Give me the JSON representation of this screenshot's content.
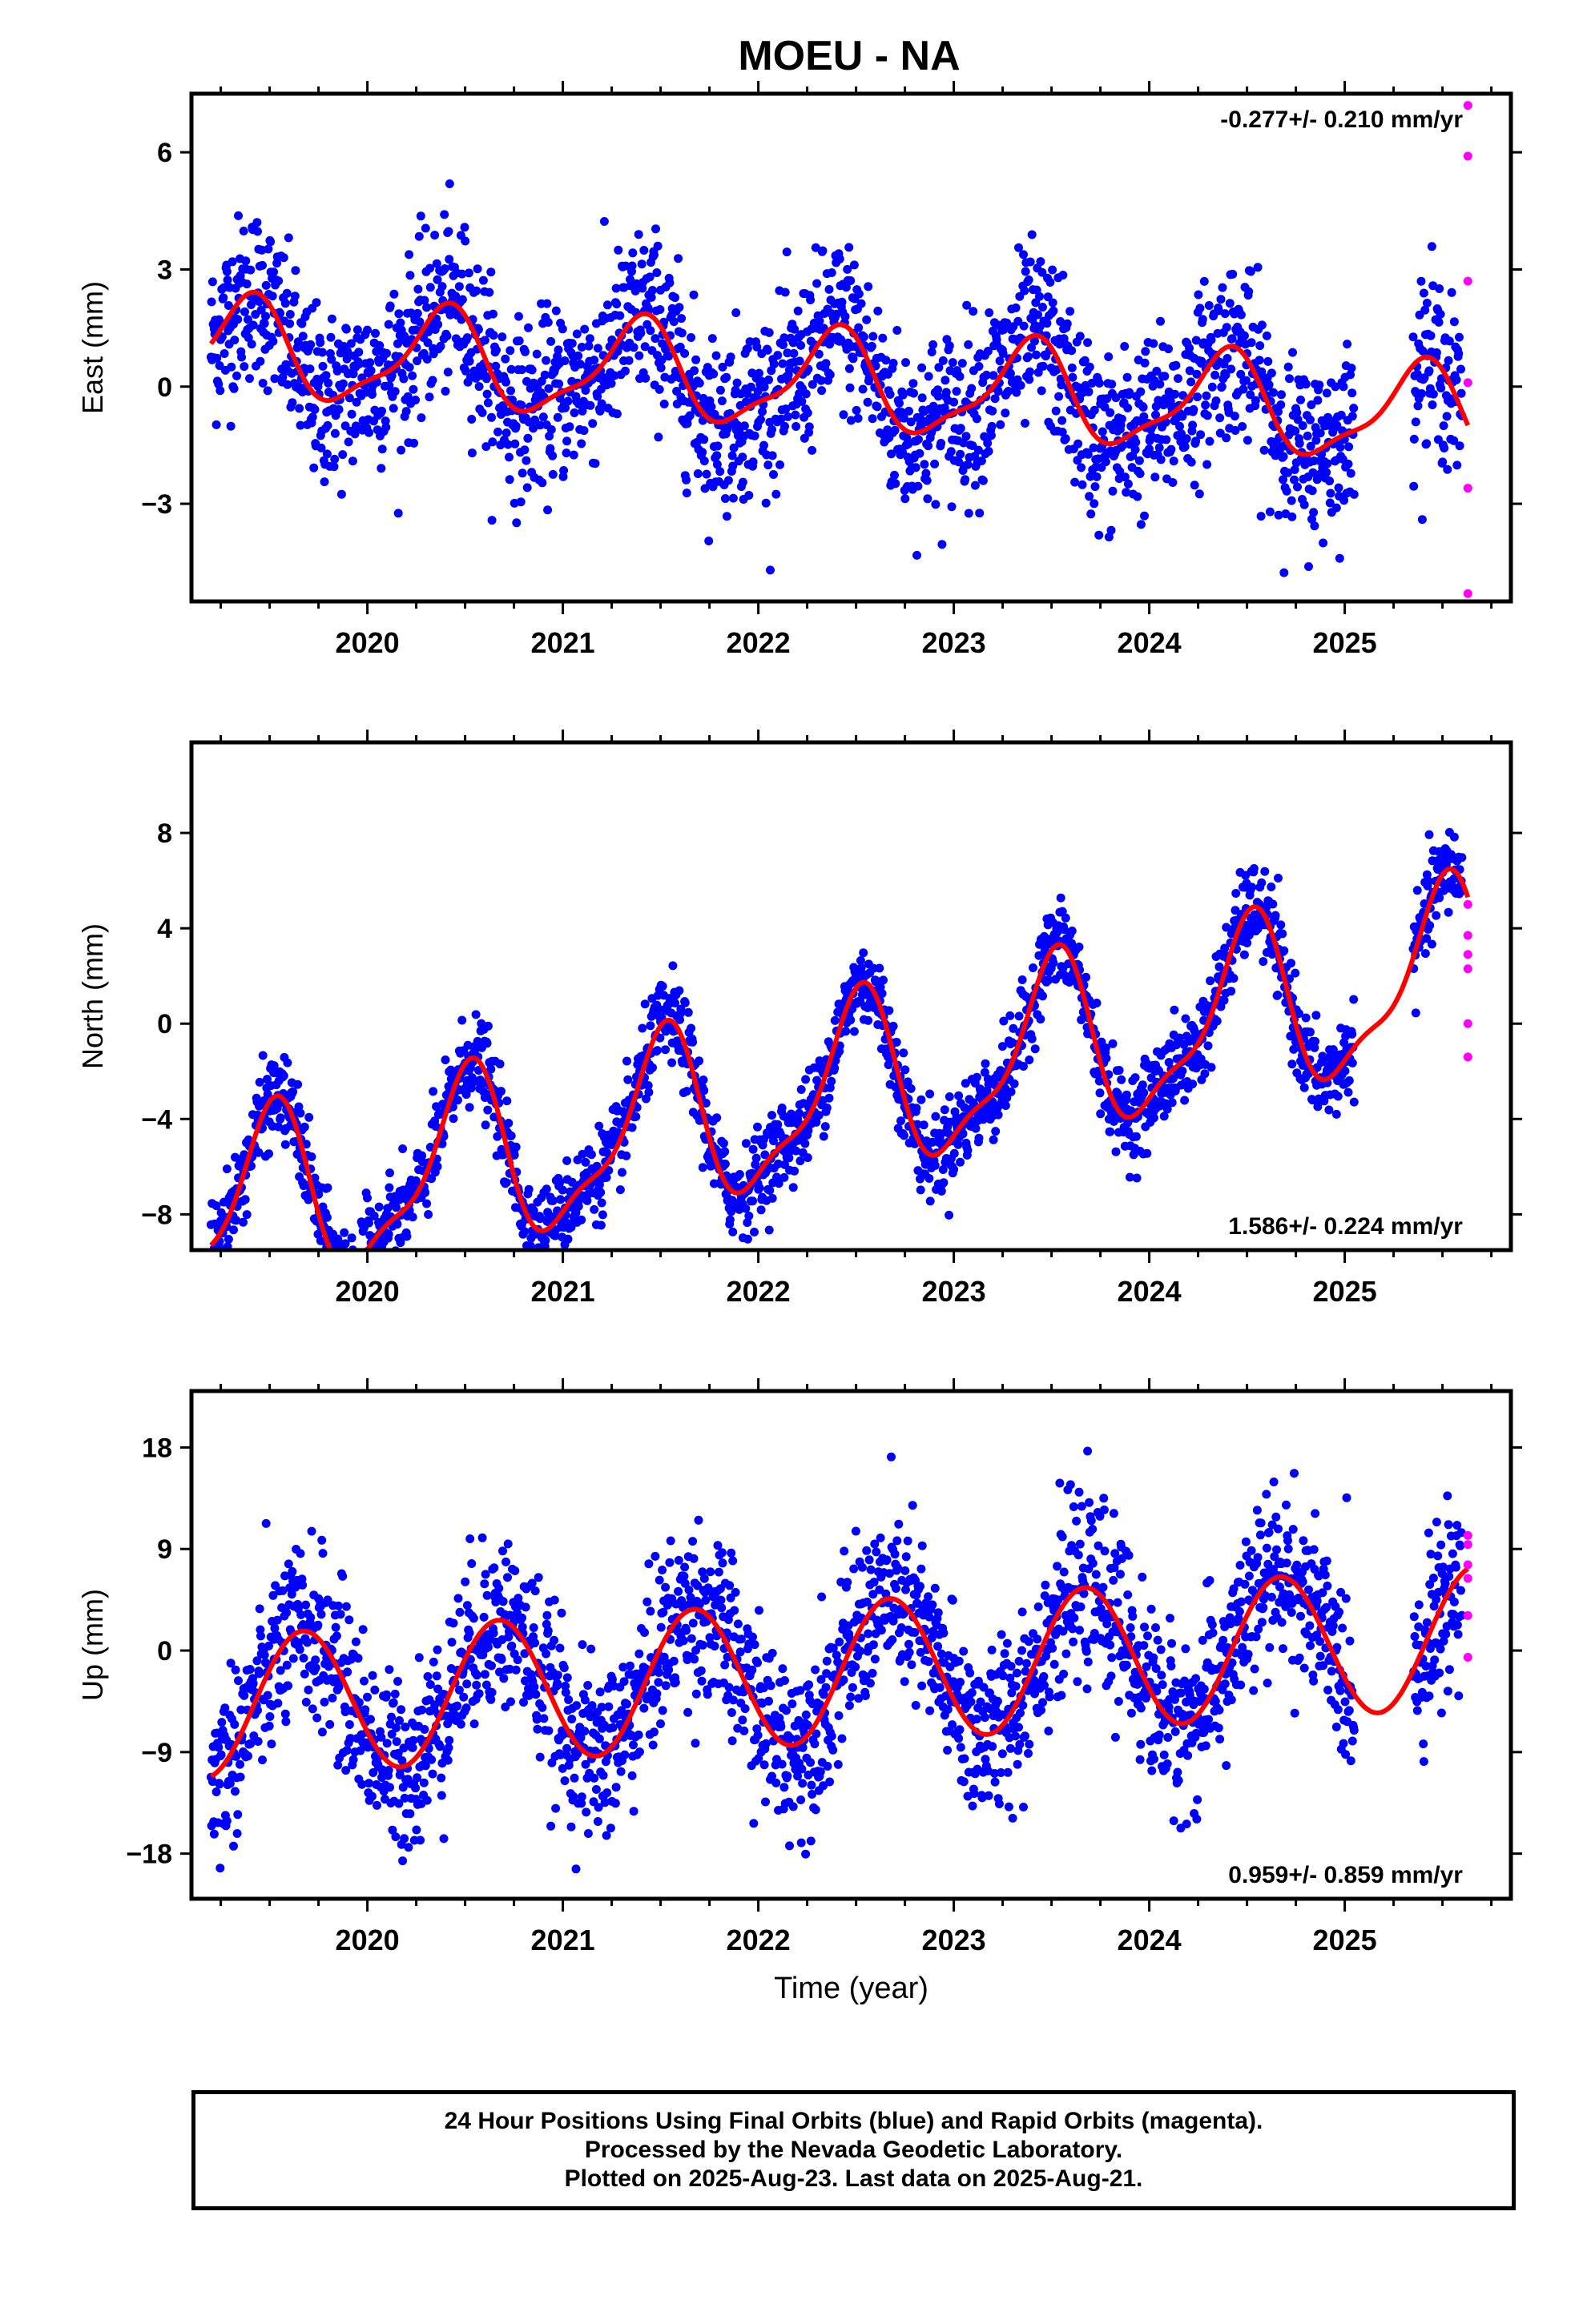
{
  "title": "MOEU - NA",
  "footer": {
    "line1": "24 Hour Positions Using Final Orbits (blue) and Rapid Orbits (magenta).",
    "line2": "Processed by the Nevada Geodetic Laboratory.",
    "line3": "Plotted on 2025-Aug-23. Last data on 2025-Aug-21."
  },
  "colors": {
    "final": "#0000ff",
    "rapid": "#ff00ff",
    "model": "#ff0000",
    "axes": "#000000"
  },
  "chart_data": [
    {
      "type": "scatter",
      "name": "east",
      "ylabel": "East (mm)",
      "xlabel": "",
      "rate_label": "-0.277+/- 0.210 mm/yr",
      "rate_position": "top-right",
      "xlim": [
        2019.1,
        2025.85
      ],
      "ylim": [
        -5.5,
        7.5
      ],
      "yticks": [
        -3,
        0,
        3,
        6
      ],
      "ytick_labels": [
        "−3",
        "0",
        "3",
        "6"
      ],
      "xticks": [
        2020,
        2021,
        2022,
        2023,
        2024,
        2025
      ],
      "xtick_labels": [
        "2020",
        "2021",
        "2022",
        "2023",
        "2024",
        "2025"
      ],
      "model": {
        "rate": -0.277,
        "offset": 0.2,
        "annual_sin": 0.8,
        "annual_cos": -0.9,
        "semi_sin": -0.2,
        "semi_cos": 0.3,
        "jitter": 1.1
      },
      "segments": [
        [
          2019.2,
          2025.05
        ],
        [
          2025.35,
          2025.6
        ]
      ],
      "rapid_x": 2025.63,
      "rapid_values": [
        7.2,
        5.9,
        2.7,
        0.1,
        -2.6,
        -5.3
      ]
    },
    {
      "type": "scatter",
      "name": "north",
      "ylabel": "North (mm)",
      "xlabel": "",
      "rate_label": "1.586+/- 0.224 mm/yr",
      "rate_position": "bottom-right",
      "xlim": [
        2019.1,
        2025.85
      ],
      "ylim": [
        -9.5,
        11.8
      ],
      "yticks": [
        -8,
        -4,
        0,
        4,
        8
      ],
      "ytick_labels": [
        "−8",
        "−4",
        "0",
        "4",
        "8"
      ],
      "xticks": [
        2020,
        2021,
        2022,
        2023,
        2024,
        2025
      ],
      "xtick_labels": [
        "2020",
        "2021",
        "2022",
        "2023",
        "2024",
        "2025"
      ],
      "model": {
        "rate": 1.586,
        "offset": -3.6,
        "annual_sin": 0.0,
        "annual_cos": -3.5,
        "semi_sin": 0.8,
        "semi_cos": 0.8,
        "jitter": 0.9
      },
      "segments": [
        [
          2019.2,
          2025.05
        ],
        [
          2025.35,
          2025.6
        ]
      ],
      "rapid_x": 2025.63,
      "rapid_values": [
        5.0,
        3.7,
        2.9,
        2.3,
        0.0,
        -1.4
      ]
    },
    {
      "type": "scatter",
      "name": "up",
      "ylabel": "Up (mm)",
      "xlabel": "Time (year)",
      "rate_label": "0.959+/- 0.859 mm/yr",
      "rate_position": "bottom-right",
      "xlim": [
        2019.1,
        2025.85
      ],
      "ylim": [
        -22,
        23
      ],
      "yticks": [
        -18,
        -9,
        0,
        9,
        18
      ],
      "ytick_labels": [
        "−18",
        "−9",
        "0",
        "9",
        "18"
      ],
      "xticks": [
        2020,
        2021,
        2022,
        2023,
        2024,
        2025
      ],
      "xtick_labels": [
        "2020",
        "2021",
        "2022",
        "2023",
        "2024",
        "2025"
      ],
      "model": {
        "rate": 0.959,
        "offset": -2.3,
        "annual_sin": -5.5,
        "annual_cos": -3.0,
        "semi_sin": 0.0,
        "semi_cos": 0.0,
        "jitter": 3.8
      },
      "segments": [
        [
          2019.2,
          2025.05
        ],
        [
          2025.35,
          2025.6
        ]
      ],
      "rapid_x": 2025.63,
      "rapid_values": [
        10.2,
        9.4,
        7.6,
        6.4,
        3.1,
        -0.6
      ]
    }
  ]
}
